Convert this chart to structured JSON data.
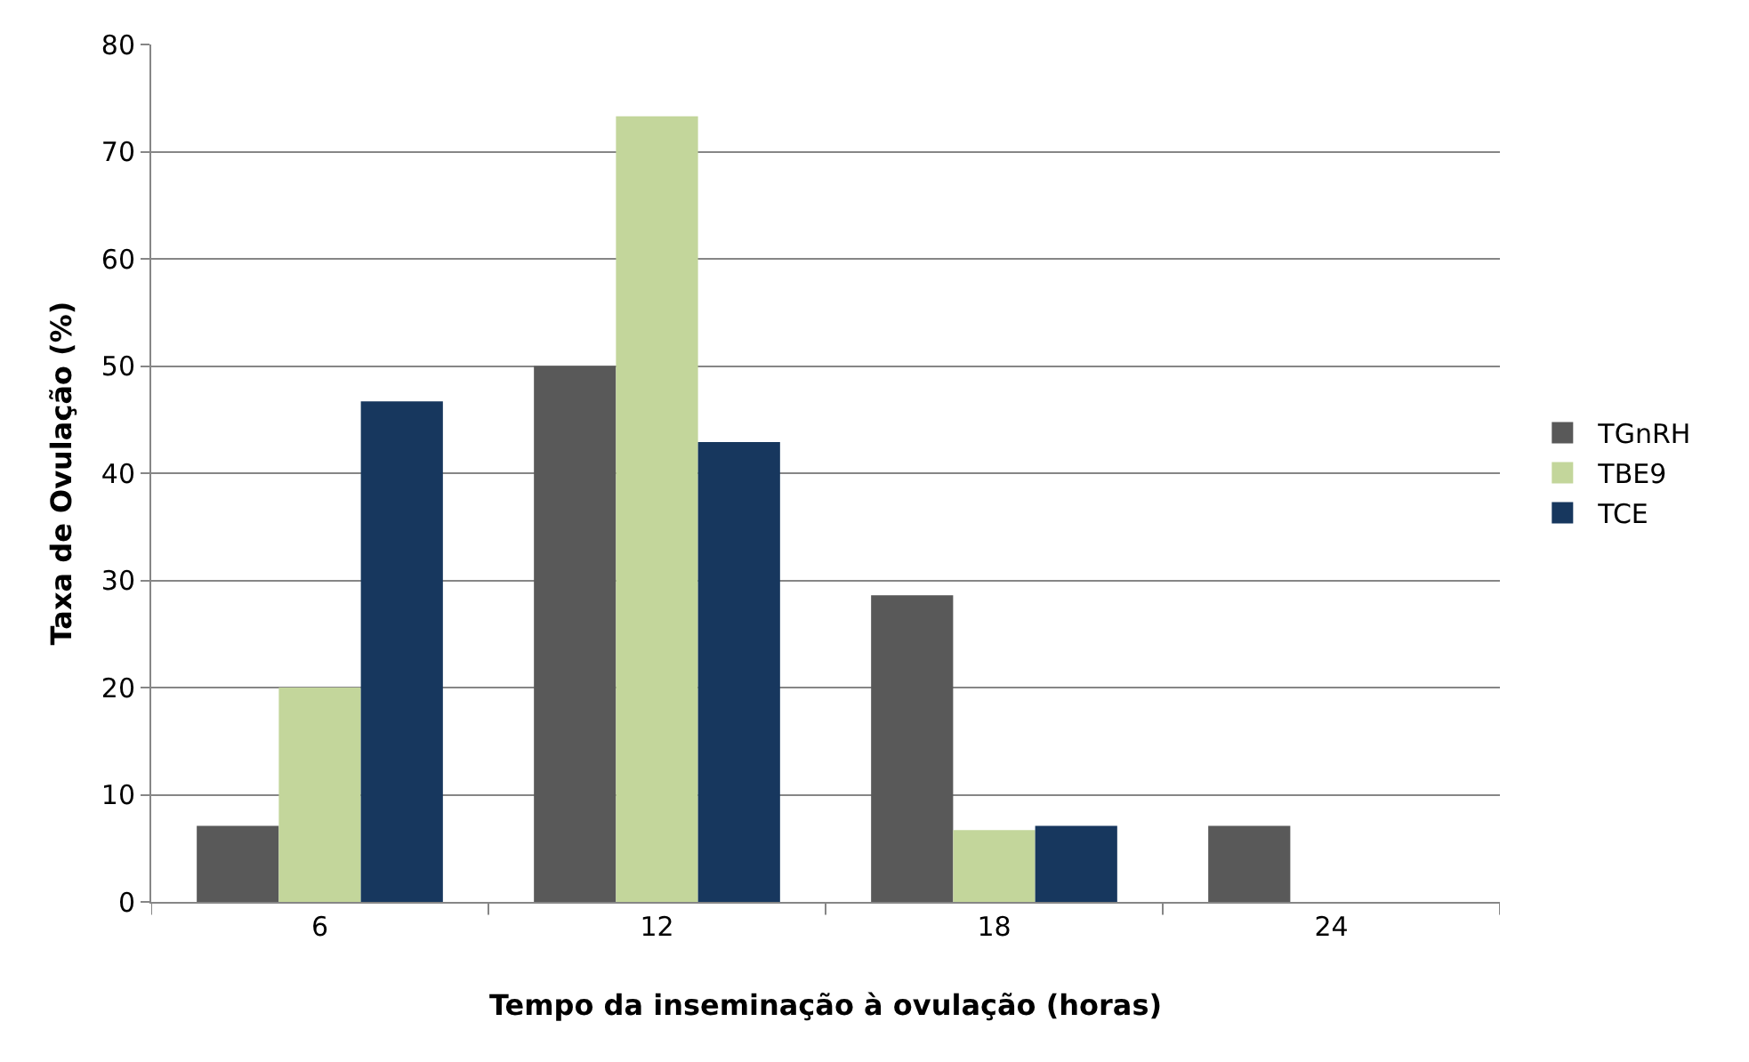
{
  "chart_data": {
    "type": "bar",
    "xlabel": "Tempo da inseminação à ovulação (horas)",
    "ylabel": "Taxa de Ovulação (%)",
    "categories": [
      "6",
      "12",
      "18",
      "24"
    ],
    "series": [
      {
        "name": "TGnRH",
        "color": "#595959",
        "values": [
          7.1,
          50,
          28.6,
          7.1
        ]
      },
      {
        "name": "TBE9",
        "color": "#c3d69b",
        "values": [
          20,
          73.3,
          6.7,
          0
        ]
      },
      {
        "name": "TCE",
        "color": "#17375e",
        "values": [
          46.7,
          42.9,
          7.1,
          0
        ]
      }
    ],
    "ylim": [
      0,
      80
    ],
    "yticks": [
      0,
      10,
      20,
      30,
      40,
      50,
      60,
      70,
      80
    ],
    "grid": "y",
    "legend": "right"
  }
}
